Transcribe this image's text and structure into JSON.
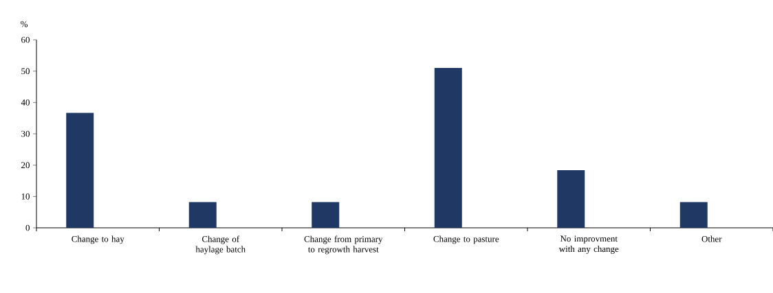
{
  "chart_data": {
    "type": "bar",
    "ylabel": "%",
    "categories": [
      "Change to hay",
      "Change of haylage batch",
      "Change from primary to regrowth harvest",
      "Change to pasture",
      "No improvment with any change",
      "Other"
    ],
    "values": [
      36.7,
      8.2,
      8.2,
      51.0,
      18.4,
      8.2
    ],
    "color": "#203864",
    "ylim": [
      0,
      60
    ],
    "yticks": [
      0,
      10,
      20,
      30,
      40,
      50,
      60
    ],
    "grid": false
  }
}
